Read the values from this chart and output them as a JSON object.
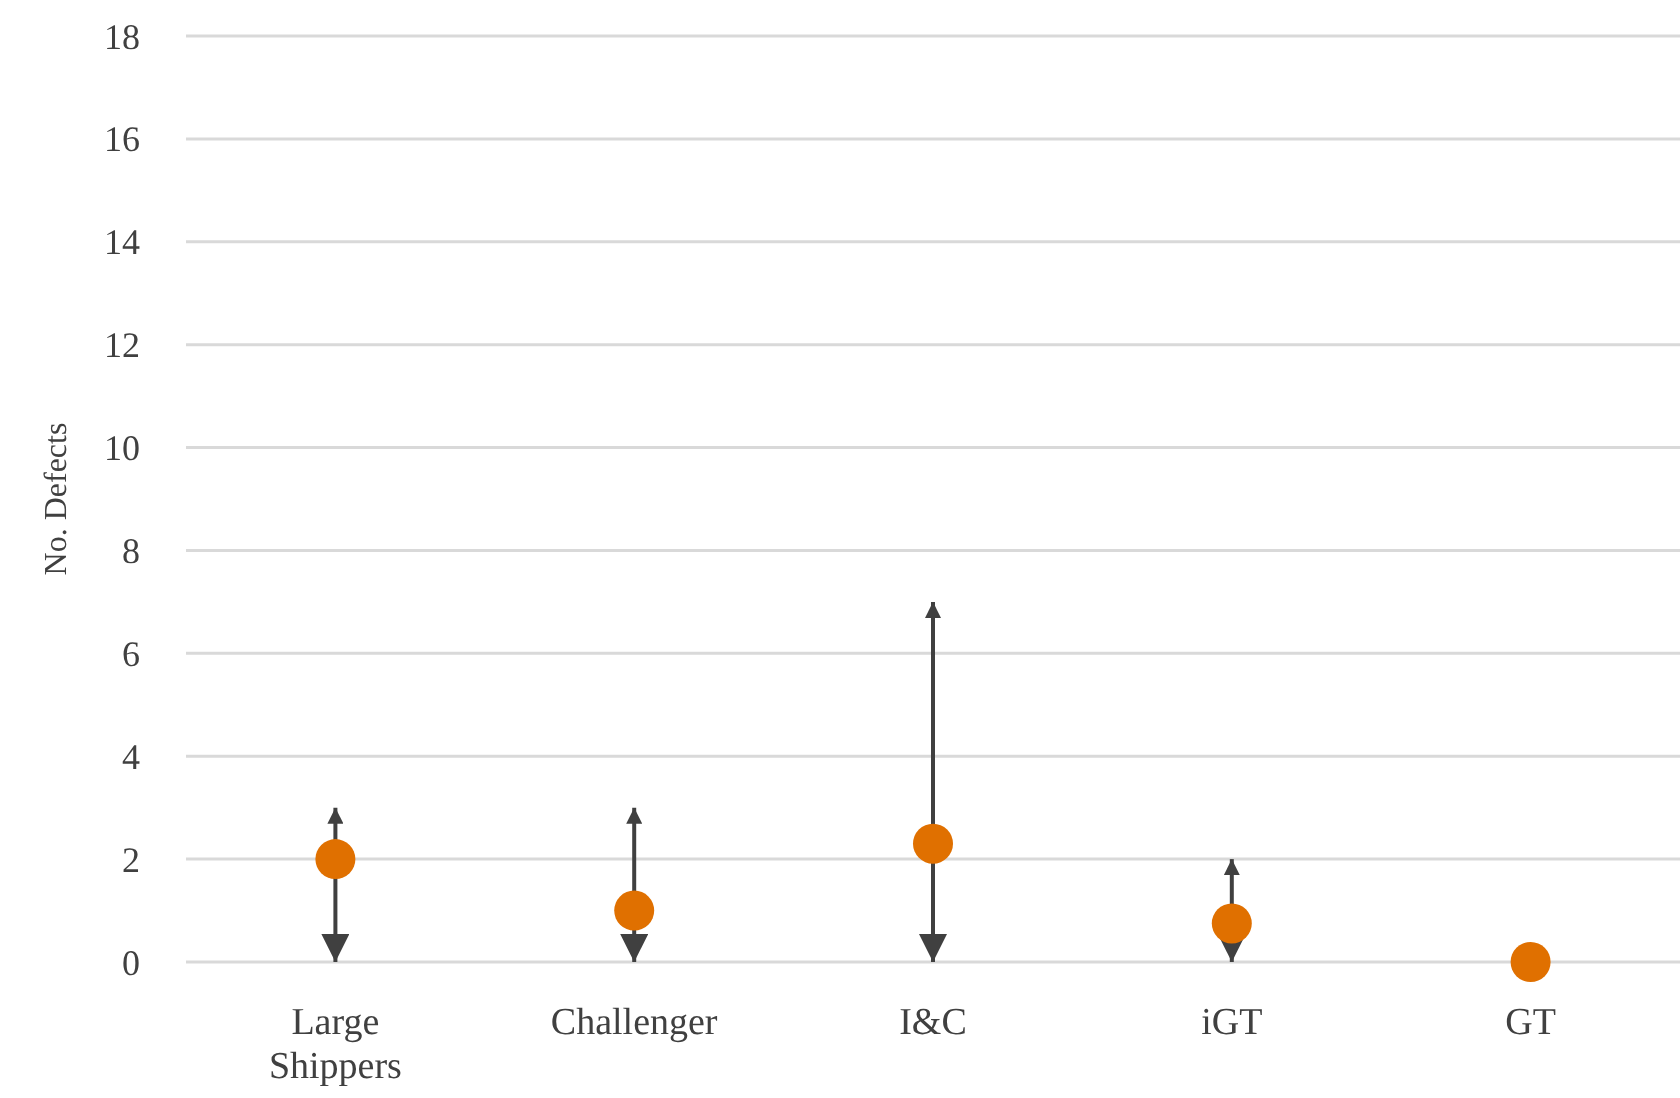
{
  "chart_data": {
    "type": "scatter",
    "ylabel": "No. Defects",
    "categories": [
      "Large Shippers",
      "Challenger",
      "I&C",
      "iGT",
      "GT"
    ],
    "series": [
      {
        "color": "#e07000",
        "values": [
          2,
          1,
          2.3,
          0.75,
          0
        ],
        "errors": [
          [
            0,
            3
          ],
          [
            0,
            3
          ],
          [
            0,
            7
          ],
          [
            0,
            2
          ],
          null
        ]
      }
    ],
    "ylim": [
      0,
      18
    ],
    "yticks": [
      0,
      2,
      4,
      6,
      8,
      10,
      12,
      14,
      16,
      18
    ],
    "grid": "y",
    "marker": "circle"
  }
}
